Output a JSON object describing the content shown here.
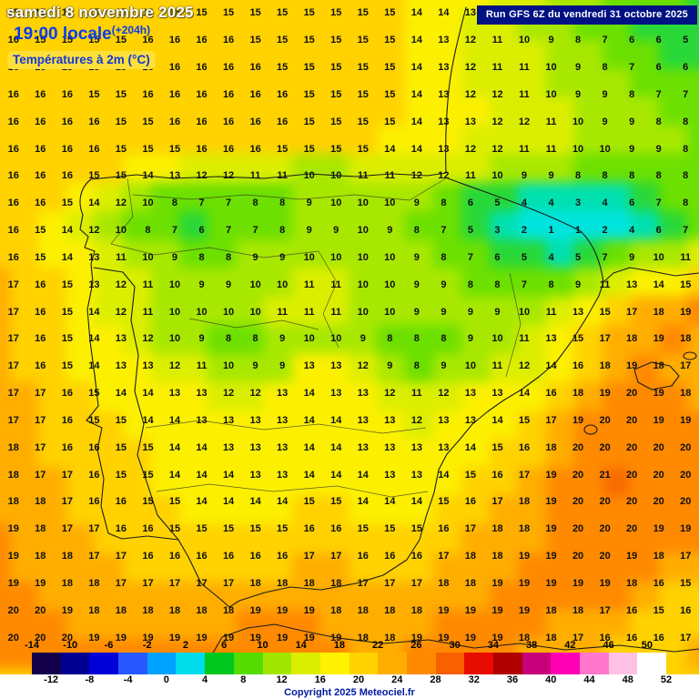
{
  "header": {
    "date_line": "samedi 8 novembre 2025",
    "time_line": "19:00 locale",
    "offset": "(+204h)",
    "param_label": "Températures à 2m (°C)"
  },
  "run_banner": {
    "text": "Run GFS 6Z du vendredi 31 octobre 2025"
  },
  "footer": {
    "copyright": "Copyright 2025 Meteociel.fr"
  },
  "legend": {
    "range": [
      -14,
      52
    ],
    "ticks_top": [
      "-14",
      "-10",
      "-6",
      "-2",
      "2",
      "6",
      "10",
      "14",
      "18",
      "22",
      "26",
      "30",
      "34",
      "38",
      "42",
      "46",
      "50"
    ],
    "ticks_bottom": [
      "-12",
      "-8",
      "-4",
      "0",
      "4",
      "8",
      "12",
      "16",
      "20",
      "24",
      "28",
      "32",
      "36",
      "40",
      "44",
      "48",
      "52"
    ],
    "colors": [
      "#14004a",
      "#000090",
      "#0000d8",
      "#2858ff",
      "#00a2ff",
      "#00dcec",
      "#00c81e",
      "#55dc00",
      "#a2e600",
      "#dcee00",
      "#fff200",
      "#ffd200",
      "#ffae00",
      "#ff8a00",
      "#f86000",
      "#e80c00",
      "#b00000",
      "#c8007a",
      "#ff00b4",
      "#ff78cc",
      "#ffc2e4",
      "#ffffff"
    ]
  },
  "colors": {
    "map_background": "#ffd200",
    "banner_bg": "#001184",
    "accent_blue": "#0a3cf0",
    "temp_stops": [
      {
        "max": 0,
        "c": "#00b4ff"
      },
      {
        "max": 2,
        "c": "#00e4e0"
      },
      {
        "max": 4,
        "c": "#00e0b0"
      },
      {
        "max": 6,
        "c": "#28d838"
      },
      {
        "max": 8,
        "c": "#6ce000"
      },
      {
        "max": 10,
        "c": "#a8e800"
      },
      {
        "max": 12,
        "c": "#dcee00"
      },
      {
        "max": 14,
        "c": "#fcf000"
      },
      {
        "max": 16,
        "c": "#ffd200"
      },
      {
        "max": 18,
        "c": "#ffae00"
      },
      {
        "max": 20,
        "c": "#ff8a00"
      },
      {
        "max": 99,
        "c": "#f86c00"
      }
    ]
  },
  "chart_data": {
    "type": "heatmap",
    "title": "Températures à 2m (°C)",
    "model_run": "Run GFS 6Z du vendredi 31 octobre 2025",
    "valid_time": "samedi 8 novembre 2025 19:00 locale (+204h)",
    "unit": "°C",
    "cols": 26,
    "rows": 24,
    "legend_range": [
      -14,
      52
    ],
    "grid": [
      [
        15,
        15,
        15,
        15,
        15,
        16,
        16,
        15,
        15,
        15,
        15,
        15,
        15,
        15,
        15,
        14,
        14,
        13,
        12,
        11,
        10,
        9,
        8,
        7,
        7,
        6
      ],
      [
        16,
        15,
        15,
        15,
        15,
        16,
        16,
        16,
        16,
        15,
        15,
        15,
        15,
        15,
        15,
        14,
        13,
        12,
        11,
        10,
        9,
        8,
        7,
        6,
        6,
        5
      ],
      [
        16,
        16,
        15,
        15,
        15,
        16,
        16,
        16,
        16,
        16,
        15,
        15,
        15,
        15,
        15,
        14,
        13,
        12,
        11,
        11,
        10,
        9,
        8,
        7,
        6,
        6
      ],
      [
        16,
        16,
        16,
        15,
        15,
        16,
        16,
        16,
        16,
        16,
        16,
        15,
        15,
        15,
        15,
        14,
        13,
        12,
        12,
        11,
        10,
        9,
        9,
        8,
        7,
        7
      ],
      [
        16,
        16,
        16,
        16,
        15,
        15,
        16,
        16,
        16,
        16,
        16,
        15,
        15,
        15,
        15,
        14,
        13,
        13,
        12,
        12,
        11,
        10,
        9,
        9,
        8,
        8
      ],
      [
        16,
        16,
        16,
        16,
        15,
        15,
        15,
        16,
        16,
        16,
        15,
        15,
        15,
        15,
        14,
        14,
        13,
        12,
        12,
        11,
        11,
        10,
        10,
        9,
        9,
        8
      ],
      [
        16,
        16,
        16,
        15,
        15,
        14,
        13,
        12,
        12,
        11,
        11,
        10,
        10,
        11,
        11,
        12,
        12,
        11,
        10,
        9,
        9,
        8,
        8,
        8,
        8,
        8
      ],
      [
        16,
        16,
        15,
        14,
        12,
        10,
        8,
        7,
        7,
        8,
        8,
        9,
        10,
        10,
        10,
        9,
        8,
        6,
        5,
        4,
        4,
        3,
        4,
        6,
        7,
        8
      ],
      [
        16,
        15,
        14,
        12,
        10,
        8,
        7,
        6,
        7,
        7,
        8,
        9,
        9,
        10,
        9,
        8,
        7,
        5,
        3,
        2,
        1,
        1,
        2,
        4,
        6,
        7
      ],
      [
        16,
        15,
        14,
        13,
        11,
        10,
        9,
        8,
        8,
        9,
        9,
        10,
        10,
        10,
        10,
        9,
        8,
        7,
        6,
        5,
        4,
        5,
        7,
        9,
        10,
        11
      ],
      [
        17,
        16,
        15,
        13,
        12,
        11,
        10,
        9,
        9,
        10,
        10,
        11,
        11,
        10,
        10,
        9,
        9,
        8,
        8,
        7,
        8,
        9,
        11,
        13,
        14,
        15
      ],
      [
        17,
        16,
        15,
        14,
        12,
        11,
        10,
        10,
        10,
        10,
        11,
        11,
        11,
        10,
        10,
        9,
        9,
        9,
        9,
        10,
        11,
        13,
        15,
        17,
        18,
        19
      ],
      [
        17,
        16,
        15,
        14,
        13,
        12,
        10,
        9,
        8,
        8,
        9,
        10,
        10,
        9,
        8,
        8,
        8,
        9,
        10,
        11,
        13,
        15,
        17,
        18,
        19,
        18
      ],
      [
        17,
        16,
        15,
        14,
        13,
        13,
        12,
        11,
        10,
        9,
        9,
        13,
        13,
        12,
        9,
        8,
        9,
        10,
        11,
        12,
        14,
        16,
        18,
        19,
        18,
        17
      ],
      [
        17,
        17,
        16,
        15,
        14,
        14,
        13,
        13,
        12,
        12,
        13,
        14,
        13,
        13,
        12,
        11,
        12,
        13,
        13,
        14,
        16,
        18,
        19,
        20,
        19,
        18
      ],
      [
        17,
        17,
        16,
        15,
        15,
        14,
        14,
        13,
        13,
        13,
        13,
        14,
        14,
        13,
        13,
        12,
        13,
        13,
        14,
        15,
        17,
        19,
        20,
        20,
        19,
        19
      ],
      [
        18,
        17,
        16,
        16,
        15,
        15,
        14,
        14,
        13,
        13,
        13,
        14,
        14,
        13,
        13,
        13,
        13,
        14,
        15,
        16,
        18,
        20,
        20,
        20,
        20,
        20
      ],
      [
        18,
        17,
        17,
        16,
        15,
        15,
        14,
        14,
        14,
        13,
        13,
        14,
        14,
        14,
        13,
        13,
        14,
        15,
        16,
        17,
        19,
        20,
        21,
        20,
        20,
        20
      ],
      [
        18,
        18,
        17,
        16,
        16,
        15,
        15,
        14,
        14,
        14,
        14,
        15,
        15,
        14,
        14,
        14,
        15,
        16,
        17,
        18,
        19,
        20,
        20,
        20,
        20,
        20
      ],
      [
        19,
        18,
        17,
        17,
        16,
        16,
        15,
        15,
        15,
        15,
        15,
        16,
        16,
        15,
        15,
        15,
        16,
        17,
        18,
        18,
        19,
        20,
        20,
        20,
        19,
        19
      ],
      [
        19,
        18,
        18,
        17,
        17,
        16,
        16,
        16,
        16,
        16,
        16,
        17,
        17,
        16,
        16,
        16,
        17,
        18,
        18,
        19,
        19,
        20,
        20,
        19,
        18,
        17
      ],
      [
        19,
        19,
        18,
        18,
        17,
        17,
        17,
        17,
        17,
        18,
        18,
        18,
        18,
        17,
        17,
        17,
        18,
        18,
        19,
        19,
        19,
        19,
        19,
        18,
        16,
        15
      ],
      [
        20,
        20,
        19,
        18,
        18,
        18,
        18,
        18,
        18,
        19,
        19,
        19,
        18,
        18,
        18,
        18,
        19,
        19,
        19,
        19,
        18,
        18,
        17,
        16,
        15,
        16
      ],
      [
        20,
        20,
        20,
        19,
        19,
        19,
        19,
        19,
        19,
        19,
        19,
        19,
        19,
        18,
        18,
        19,
        19,
        19,
        19,
        18,
        18,
        17,
        16,
        16,
        16,
        17
      ]
    ]
  }
}
